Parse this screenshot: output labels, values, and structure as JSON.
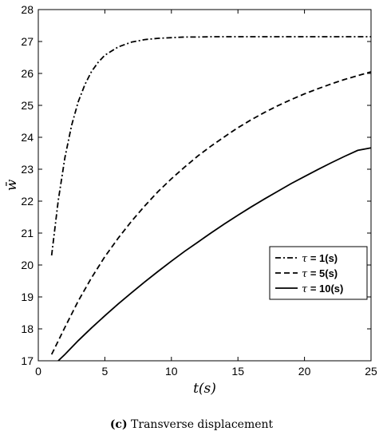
{
  "caption": {
    "tag": "(c)",
    "text": "Transverse displacement"
  },
  "chart_data": {
    "type": "line",
    "xlabel": "t(s)",
    "ylabel": "w̄",
    "xlim": [
      0,
      25
    ],
    "ylim": [
      17,
      28
    ],
    "xticks": [
      0,
      5,
      10,
      15,
      20,
      25
    ],
    "yticks": [
      17,
      18,
      19,
      20,
      21,
      22,
      23,
      24,
      25,
      26,
      27,
      28
    ],
    "grid": false,
    "legend_position": "middle-right",
    "series": [
      {
        "name": "τ = 1(s)",
        "tau": "τ",
        "label": " = 1(s)",
        "style": "dash-dot",
        "x": [
          1,
          1.5,
          2,
          2.5,
          3,
          3.5,
          4,
          4.5,
          5,
          6,
          7,
          8,
          9,
          10,
          11,
          12,
          13,
          14,
          15,
          17,
          19,
          21,
          23,
          25
        ],
        "y": [
          20.3,
          22.02,
          23.37,
          24.37,
          25.11,
          25.65,
          26.06,
          26.35,
          26.57,
          26.83,
          26.98,
          27.06,
          27.1,
          27.12,
          27.14,
          27.14,
          27.15,
          27.15,
          27.15,
          27.15,
          27.15,
          27.15,
          27.15,
          27.15
        ]
      },
      {
        "name": "τ = 5(s)",
        "tau": "τ",
        "label": " = 5(s)",
        "style": "dashed",
        "x": [
          1,
          2,
          3,
          4,
          5,
          6,
          7,
          8,
          9,
          10,
          11,
          12,
          13,
          14,
          15,
          16,
          17,
          18,
          19,
          20,
          21,
          22,
          23,
          24,
          25
        ],
        "y": [
          17.2,
          18.05,
          18.87,
          19.6,
          20.26,
          20.84,
          21.37,
          21.85,
          22.3,
          22.7,
          23.07,
          23.42,
          23.73,
          24.02,
          24.3,
          24.55,
          24.78,
          24.99,
          25.18,
          25.36,
          25.52,
          25.67,
          25.81,
          25.93,
          26.05
        ]
      },
      {
        "name": "τ = 10(s)",
        "tau": "τ",
        "label": " = 10(s)",
        "style": "solid",
        "x": [
          1.5,
          2,
          3,
          4,
          5,
          6,
          7,
          8,
          9,
          10,
          11,
          12,
          13,
          14,
          15,
          16,
          17,
          18,
          19,
          20,
          21,
          22,
          23,
          24,
          25
        ],
        "y": [
          17,
          17.2,
          17.63,
          18.03,
          18.41,
          18.78,
          19.13,
          19.47,
          19.8,
          20.12,
          20.43,
          20.72,
          21.01,
          21.29,
          21.56,
          21.82,
          22.07,
          22.31,
          22.55,
          22.77,
          22.99,
          23.2,
          23.4,
          23.59,
          23.67
        ]
      }
    ]
  }
}
